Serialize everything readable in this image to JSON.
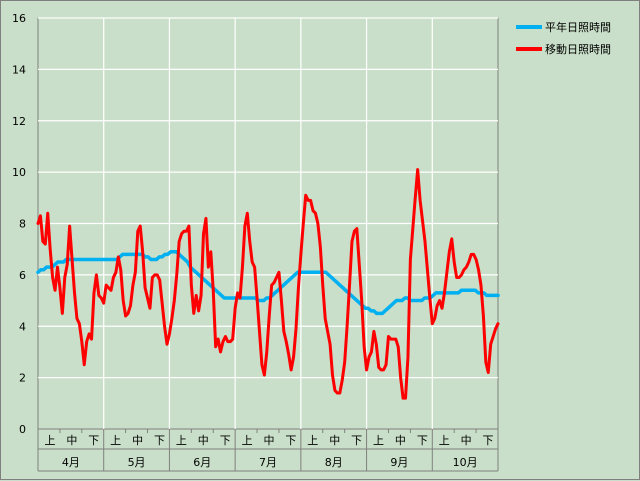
{
  "chart_data": {
    "type": "line",
    "title": "",
    "xlabel": "",
    "ylabel": "",
    "ylim": [
      0,
      16
    ],
    "y_ticks": [
      "0",
      "2",
      "4",
      "6",
      "8",
      "10",
      "12",
      "14",
      "16"
    ],
    "months": [
      "4月",
      "5月",
      "6月",
      "7月",
      "8月",
      "9月",
      "10月"
    ],
    "dekads": [
      "上",
      "中",
      "下"
    ],
    "grid": true,
    "legend_position": "right",
    "series": [
      {
        "name": "平年日照時間",
        "color": "#00b0f0",
        "values": [
          6.1,
          6.2,
          6.2,
          6.3,
          6.3,
          6.3,
          6.4,
          6.5,
          6.5,
          6.5,
          6.6,
          6.6,
          6.6,
          6.6,
          6.6,
          6.6,
          6.6,
          6.6,
          6.6,
          6.6,
          6.6,
          6.6,
          6.6,
          6.6,
          6.6,
          6.6,
          6.6,
          6.6,
          6.6,
          6.7,
          6.8,
          6.8,
          6.8,
          6.8,
          6.8,
          6.8,
          6.8,
          6.8,
          6.7,
          6.7,
          6.6,
          6.6,
          6.6,
          6.7,
          6.7,
          6.8,
          6.8,
          6.9,
          6.9,
          6.9,
          6.8,
          6.7,
          6.6,
          6.5,
          6.3,
          6.2,
          6.1,
          6.0,
          5.9,
          5.8,
          5.7,
          5.6,
          5.5,
          5.4,
          5.3,
          5.2,
          5.1,
          5.1,
          5.1,
          5.1,
          5.1,
          5.1,
          5.1,
          5.1,
          5.1,
          5.1,
          5.1,
          5.1,
          5.0,
          5.0,
          5.0,
          5.1,
          5.1,
          5.2,
          5.3,
          5.4,
          5.5,
          5.6,
          5.7,
          5.8,
          5.9,
          6.0,
          6.1,
          6.1,
          6.1,
          6.1,
          6.1,
          6.1,
          6.1,
          6.1,
          6.1,
          6.1,
          6.1,
          6.0,
          5.9,
          5.8,
          5.7,
          5.6,
          5.5,
          5.4,
          5.3,
          5.2,
          5.1,
          5.0,
          4.9,
          4.8,
          4.7,
          4.7,
          4.6,
          4.6,
          4.5,
          4.5,
          4.5,
          4.6,
          4.7,
          4.8,
          4.9,
          5.0,
          5.0,
          5.0,
          5.1,
          5.1,
          5.0,
          5.0,
          5.0,
          5.0,
          5.0,
          5.1,
          5.1,
          5.1,
          5.2,
          5.3,
          5.3,
          5.3,
          5.3,
          5.3,
          5.3,
          5.3,
          5.3,
          5.3,
          5.4,
          5.4,
          5.4,
          5.4,
          5.4,
          5.4,
          5.3,
          5.3,
          5.3,
          5.2,
          5.2,
          5.2,
          5.2,
          5.2
        ]
      },
      {
        "name": "移動日照時間",
        "color": "#ff0000",
        "values": [
          8.0,
          8.3,
          7.3,
          7.2,
          8.4,
          7.0,
          5.9,
          5.4,
          6.3,
          5.5,
          4.5,
          5.9,
          6.4,
          7.9,
          6.6,
          5.3,
          4.3,
          4.1,
          3.4,
          2.5,
          3.4,
          3.7,
          3.5,
          5.3,
          6.0,
          5.2,
          5.1,
          4.9,
          5.6,
          5.5,
          5.4,
          5.9,
          6.1,
          6.7,
          6.2,
          5.0,
          4.4,
          4.5,
          4.8,
          5.6,
          6.1,
          7.7,
          7.9,
          6.9,
          5.5,
          5.1,
          4.7,
          5.9,
          6.0,
          6.0,
          5.8,
          4.9,
          4.0,
          3.3,
          3.7,
          4.3,
          5.0,
          6.0,
          7.3,
          7.6,
          7.7,
          7.7,
          7.9,
          5.6,
          4.5,
          5.2,
          4.6,
          5.2,
          7.6,
          8.2,
          6.3,
          6.9,
          5.4,
          3.2,
          3.5,
          3.0,
          3.4,
          3.6,
          3.4,
          3.4,
          3.5,
          4.7,
          5.3,
          5.1,
          6.3,
          7.9,
          8.4,
          7.3,
          6.5,
          6.3,
          5.1,
          3.8,
          2.5,
          2.1,
          3.0,
          4.4,
          5.6,
          5.7,
          5.9,
          6.1,
          5.0,
          3.8,
          3.4,
          2.9,
          2.3,
          2.8,
          3.9,
          5.5,
          6.8,
          8.0,
          9.1,
          8.9,
          8.9,
          8.5,
          8.4,
          8.0,
          7.1,
          5.6,
          4.3,
          3.8,
          3.3,
          2.1,
          1.5,
          1.4,
          1.4,
          1.9,
          2.6,
          4.0,
          5.6,
          7.3,
          7.7,
          7.8,
          6.4,
          5.0,
          3.2,
          2.3,
          2.8,
          3.0,
          3.8,
          3.3,
          2.4,
          2.3,
          2.3,
          2.5,
          3.6,
          3.5,
          3.5,
          3.5,
          3.2,
          2.0,
          1.2,
          1.2,
          2.8,
          6.6,
          7.8,
          9.0,
          10.1,
          8.9,
          8.1,
          7.3,
          6.2,
          5.1,
          4.1,
          4.3,
          4.8,
          5.0,
          4.7,
          5.3,
          6.1,
          6.9,
          7.4,
          6.5,
          5.9,
          5.9,
          6.0,
          6.2,
          6.3,
          6.5,
          6.8,
          6.8,
          6.6,
          6.2,
          5.6,
          4.4,
          2.6,
          2.2,
          3.3,
          3.6,
          3.9,
          4.1
        ]
      }
    ]
  }
}
